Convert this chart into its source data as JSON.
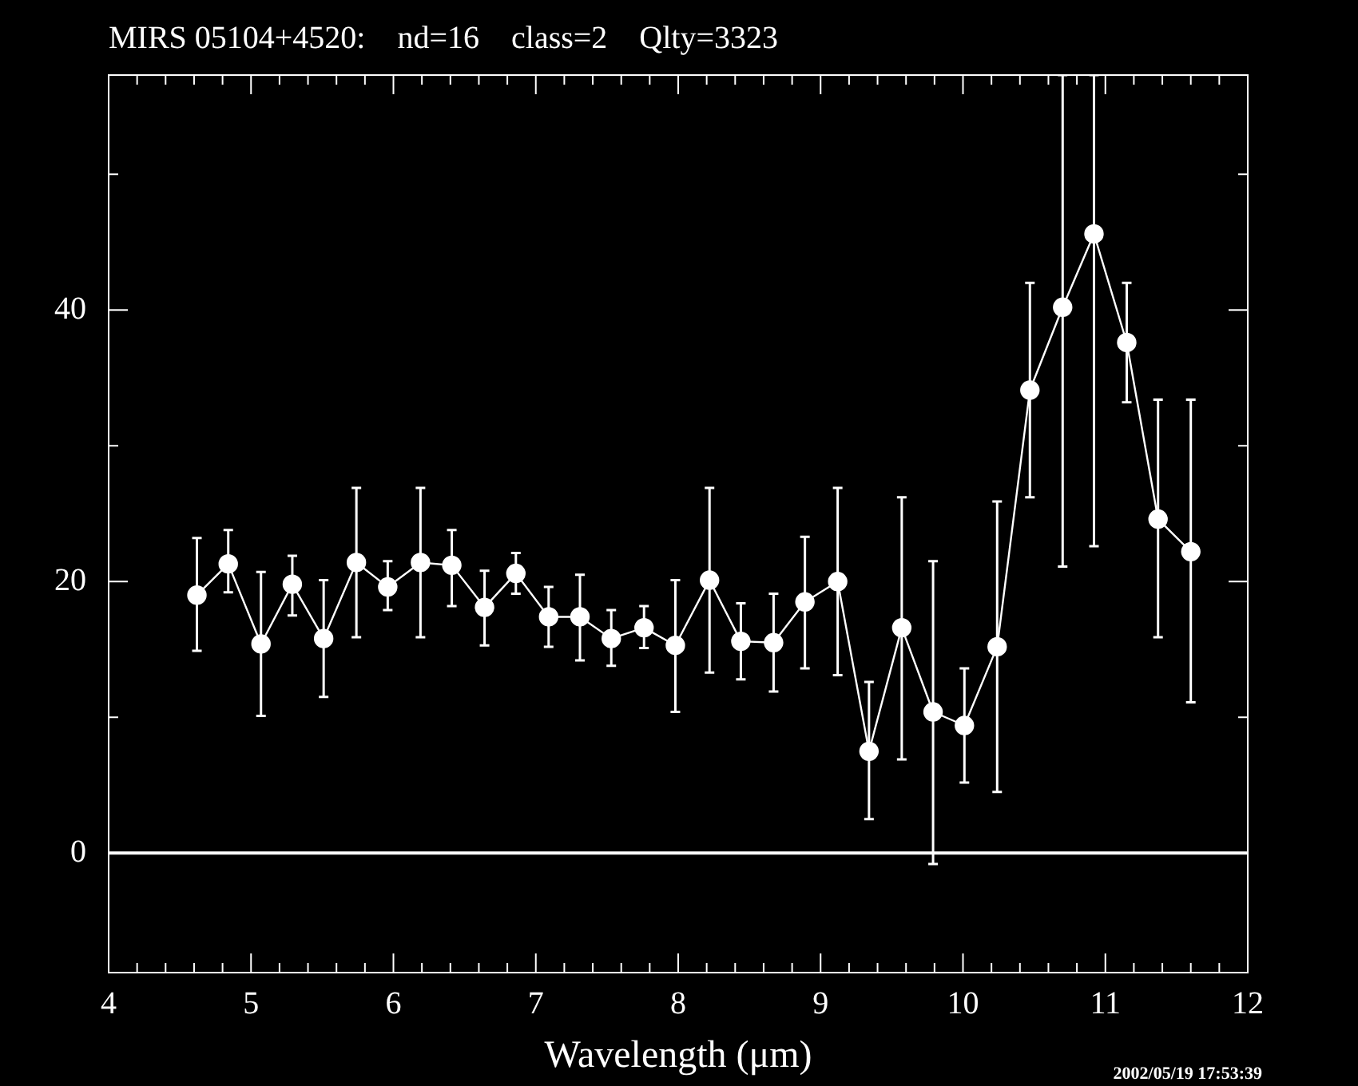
{
  "chart_data": {
    "type": "line",
    "title": "MIRS 05104+4520:    nd=16    class=2    Qlty=3323",
    "xlabel": "Wavelength (μm)",
    "annotations": [
      "2002/05/19 17:53:39"
    ],
    "series": [
      {
        "color": "#ffffff",
        "x": [
          4.62,
          4.84,
          5.07,
          5.29,
          5.51,
          5.74,
          5.96,
          6.19,
          6.41,
          6.64,
          6.86,
          7.09,
          7.31,
          7.53,
          7.76,
          7.98,
          8.22,
          8.44,
          8.67,
          8.89,
          9.12,
          9.34,
          9.57,
          9.79,
          10.01,
          10.24,
          10.47,
          10.7,
          10.92,
          11.15,
          11.37,
          11.6
        ],
        "values": [
          19.0,
          21.3,
          15.4,
          19.8,
          15.8,
          21.4,
          19.6,
          21.4,
          21.2,
          18.1,
          20.6,
          17.4,
          17.4,
          15.8,
          16.6,
          15.3,
          20.1,
          15.6,
          15.5,
          18.5,
          20.0,
          7.5,
          16.6,
          10.4,
          9.4,
          15.2,
          34.1,
          40.2,
          45.6,
          37.6,
          24.6,
          22.2
        ],
        "errors": [
          [
            14.9,
            23.2
          ],
          [
            19.2,
            23.8
          ],
          [
            10.1,
            20.7
          ],
          [
            17.5,
            21.9
          ],
          [
            11.5,
            20.1
          ],
          [
            15.9,
            26.9
          ],
          [
            17.9,
            21.5
          ],
          [
            15.9,
            26.9
          ],
          [
            18.2,
            23.8
          ],
          [
            15.3,
            20.8
          ],
          [
            19.1,
            22.1
          ],
          [
            15.2,
            19.6
          ],
          [
            14.2,
            20.5
          ],
          [
            13.8,
            17.9
          ],
          [
            15.1,
            18.2
          ],
          [
            10.4,
            20.1
          ],
          [
            13.3,
            26.9
          ],
          [
            12.8,
            18.4
          ],
          [
            11.9,
            19.1
          ],
          [
            13.6,
            23.3
          ],
          [
            13.1,
            26.9
          ],
          [
            2.5,
            12.6
          ],
          [
            6.9,
            26.2
          ],
          [
            -0.8,
            21.5
          ],
          [
            5.2,
            13.6
          ],
          [
            4.5,
            25.9
          ],
          [
            26.2,
            42.0
          ],
          [
            21.1,
            57.3
          ],
          [
            22.6,
            57.3
          ],
          [
            33.2,
            42.0
          ],
          [
            15.9,
            33.4
          ],
          [
            11.1,
            33.4
          ]
        ]
      }
    ],
    "marker": "circle",
    "xlim": [
      4,
      12
    ],
    "xticks": [
      4,
      {
        "value": 4.2,
        "label": null
      },
      {
        "value": 4.4,
        "label": null
      },
      {
        "value": 4.6,
        "label": null
      },
      {
        "value": 4.8,
        "label": null
      },
      5,
      {
        "value": 5.2,
        "label": null
      },
      {
        "value": 5.4,
        "label": null
      },
      {
        "value": 5.6,
        "label": null
      },
      {
        "value": 5.8,
        "label": null
      },
      6,
      {
        "value": 6.2,
        "label": null
      },
      {
        "value": 6.4,
        "label": null
      },
      {
        "value": 6.6,
        "label": null
      },
      {
        "value": 6.8,
        "label": null
      },
      7,
      {
        "value": 7.2,
        "label": null
      },
      {
        "value": 7.4,
        "label": null
      },
      {
        "value": 7.6,
        "label": null
      },
      {
        "value": 7.8,
        "label": null
      },
      8,
      {
        "value": 8.2,
        "label": null
      },
      {
        "value": 8.4,
        "label": null
      },
      {
        "value": 8.6,
        "label": null
      },
      {
        "value": 8.8,
        "label": null
      },
      9,
      {
        "value": 9.2,
        "label": null
      },
      {
        "value": 9.4,
        "label": null
      },
      {
        "value": 9.6,
        "label": null
      },
      {
        "value": 9.8,
        "label": null
      },
      10,
      {
        "value": 10.2,
        "label": null
      },
      {
        "value": 10.4,
        "label": null
      },
      {
        "value": 10.6,
        "label": null
      },
      {
        "value": 10.8,
        "label": null
      },
      11,
      {
        "value": 11.2,
        "label": null
      },
      {
        "value": 11.4,
        "label": null
      },
      {
        "value": 11.6,
        "label": null
      },
      {
        "value": 11.8,
        "label": null
      },
      12
    ],
    "ylim": [
      -8.8,
      57.3
    ],
    "yticks": [
      0,
      {
        "value": 10,
        "label": null
      },
      20,
      {
        "value": 30,
        "label": null
      },
      40,
      {
        "value": 50,
        "label": null
      }
    ],
    "ref_lines": [
      {
        "axis": "y",
        "value": 0,
        "color": "#ffffff"
      }
    ],
    "grid": false,
    "legend": false
  }
}
